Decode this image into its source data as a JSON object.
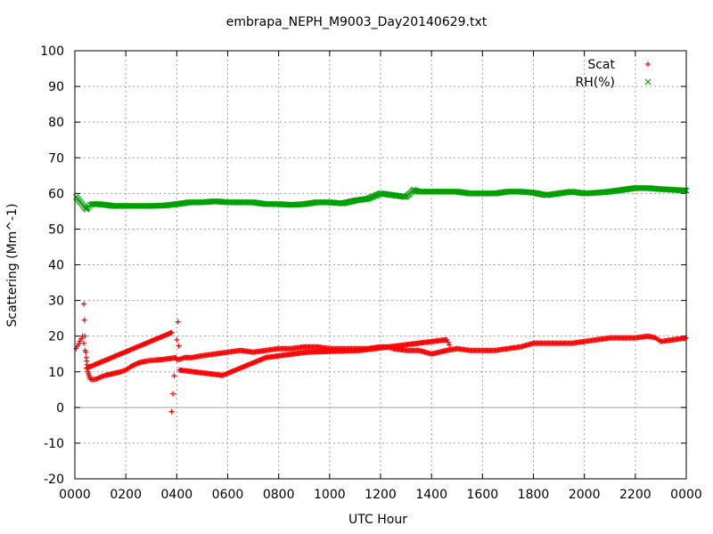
{
  "chart_data": {
    "type": "scatter",
    "title": "embrapa_NEPH_M9003_Day20140629.txt",
    "xlabel": "UTC Hour",
    "ylabel": "Scattering (Mm^-1)",
    "xlim": [
      0,
      24
    ],
    "ylim": [
      -20,
      100
    ],
    "x_ticks": [
      0,
      2,
      4,
      6,
      8,
      10,
      12,
      14,
      16,
      18,
      20,
      22,
      24
    ],
    "x_tick_labels": [
      "0000",
      "0200",
      "0400",
      "0600",
      "0800",
      "1000",
      "1200",
      "1400",
      "1600",
      "1800",
      "2000",
      "2200",
      "0000"
    ],
    "y_ticks": [
      -20,
      -10,
      0,
      10,
      20,
      30,
      40,
      50,
      60,
      70,
      80,
      90,
      100
    ],
    "grid": true,
    "legend_position": "top-right",
    "series": [
      {
        "name": "Scat",
        "color": "#ff0000",
        "marker": "plus",
        "x": [
          0.05,
          0.3,
          0.45,
          0.48,
          0.52,
          0.55,
          0.6,
          0.7,
          0.85,
          1.0,
          1.2,
          1.5,
          1.8,
          2.0,
          2.2,
          2.5,
          2.8,
          3.0,
          3.2,
          3.5,
          3.8,
          3.95,
          4.0,
          4.1,
          4.3,
          4.6,
          5.0,
          5.5,
          6.0,
          6.5,
          7.0,
          7.5,
          8.0,
          8.5,
          9.0,
          9.5,
          10.0,
          10.5,
          11.0,
          11.5,
          12.0,
          12.3,
          12.5,
          13.0,
          13.5,
          14.0,
          14.3,
          14.6,
          15.0,
          15.5,
          16.0,
          16.5,
          17.0,
          17.5,
          18.0,
          18.5,
          19.0,
          19.5,
          20.0,
          20.5,
          21.0,
          21.5,
          22.0,
          22.5,
          22.8,
          23.0,
          23.5,
          24.0,
          0.35,
          0.4,
          0.45,
          3.8,
          3.8,
          4.05,
          4.1,
          5.8,
          7.5,
          9.1,
          11.2,
          14.6,
          14.7
        ],
        "y": [
          16.5,
          20,
          14,
          12,
          10,
          9,
          8,
          7.8,
          8,
          8.5,
          9,
          9.5,
          10,
          10.5,
          11.5,
          12.5,
          13,
          13.2,
          13.3,
          13.5,
          13.8,
          14,
          13.5,
          13.5,
          14,
          14,
          14.5,
          15,
          15.5,
          16,
          15.5,
          16,
          16.5,
          16.5,
          17,
          17,
          16.5,
          16.5,
          16.5,
          16.5,
          17,
          17,
          16.5,
          16,
          16,
          15,
          15.5,
          16,
          16.5,
          16,
          16,
          16,
          16.5,
          17,
          18,
          18,
          18,
          18,
          18.5,
          19,
          19.5,
          19.5,
          19.5,
          20,
          19.5,
          18.5,
          19,
          19.5,
          29,
          20,
          11,
          21,
          -1.2,
          24,
          10.5,
          9,
          14,
          15.5,
          16,
          19,
          17.5
        ]
      },
      {
        "name": "RH(%)",
        "color": "#00a000",
        "marker": "cross",
        "x": [
          0.05,
          0.45,
          0.5,
          0.6,
          0.7,
          0.9,
          1.2,
          1.5,
          1.8,
          2.0,
          2.5,
          3.0,
          3.5,
          4.0,
          4.5,
          5.0,
          5.5,
          6.0,
          6.5,
          7.0,
          7.5,
          8.0,
          8.5,
          9.0,
          9.5,
          10.0,
          10.5,
          11.0,
          11.5,
          12.0,
          12.5,
          13.0,
          13.3,
          13.5,
          14.0,
          14.5,
          15.0,
          15.5,
          16.0,
          16.5,
          17.0,
          17.5,
          18.0,
          18.5,
          19.0,
          19.5,
          20.0,
          20.5,
          21.0,
          21.5,
          22.0,
          22.5,
          23.0,
          23.5,
          24.0
        ],
        "y": [
          59,
          55.5,
          56,
          56.8,
          57,
          57,
          56.8,
          56.5,
          56.5,
          56.5,
          56.5,
          56.5,
          56.6,
          57,
          57.5,
          57.5,
          57.8,
          57.5,
          57.5,
          57.5,
          57,
          57,
          56.8,
          57,
          57.5,
          57.5,
          57.2,
          58,
          58.5,
          60,
          59.5,
          59,
          61,
          60.5,
          60.5,
          60.5,
          60.5,
          60,
          60,
          60,
          60.5,
          60.5,
          60.2,
          59.5,
          60,
          60.5,
          60,
          60.2,
          60.5,
          61,
          61.5,
          61.5,
          61.2,
          61,
          60.8
        ]
      }
    ]
  }
}
